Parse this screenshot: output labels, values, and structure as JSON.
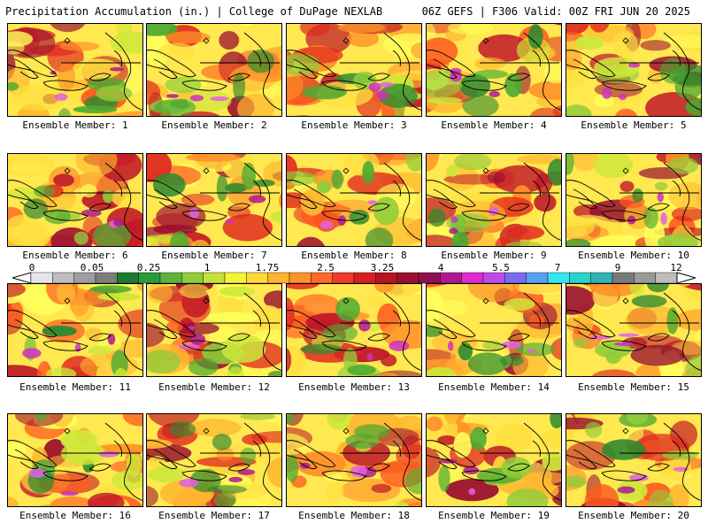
{
  "header": {
    "title_left": "Precipitation Accumulation (in.) | College of DuPage NEXLAB",
    "title_right": "06Z GEFS | F306 Valid: 00Z FRI JUN 20 2025"
  },
  "colorbar": {
    "labels": [
      "0",
      "0.05",
      "0.25",
      "1",
      "1.75",
      "2.5",
      "3.25",
      "4",
      "5.5",
      "7",
      "9",
      "12"
    ],
    "colors": [
      "#e6e6e6",
      "#bdbdbd",
      "#9e9e9e",
      "#7d7d7d",
      "#1e7a2e",
      "#2e9a3a",
      "#5cb53a",
      "#8fcc3a",
      "#c8e03a",
      "#f2f23a",
      "#ffd83a",
      "#ffb42e",
      "#ff922a",
      "#ff6a2a",
      "#f03a2a",
      "#d81e1e",
      "#b81420",
      "#9a1030",
      "#8a1050",
      "#b01890",
      "#e02ad0",
      "#c04ae8",
      "#7a6cf0",
      "#5aa0f0",
      "#32e6f0",
      "#2ad2c8",
      "#30b4b4",
      "#7a7a7a",
      "#9a9a9a",
      "#bcbcbc"
    ]
  },
  "members": [
    {
      "caption": "Ensemble Member: 1"
    },
    {
      "caption": "Ensemble Member: 2"
    },
    {
      "caption": "Ensemble Member: 3"
    },
    {
      "caption": "Ensemble Member: 4"
    },
    {
      "caption": "Ensemble Member: 5"
    },
    {
      "caption": "Ensemble Member: 6"
    },
    {
      "caption": "Ensemble Member: 7"
    },
    {
      "caption": "Ensemble Member: 8"
    },
    {
      "caption": "Ensemble Member: 9"
    },
    {
      "caption": "Ensemble Member: 10"
    },
    {
      "caption": "Ensemble Member: 11"
    },
    {
      "caption": "Ensemble Member: 12"
    },
    {
      "caption": "Ensemble Member: 13"
    },
    {
      "caption": "Ensemble Member: 14"
    },
    {
      "caption": "Ensemble Member: 15"
    },
    {
      "caption": "Ensemble Member: 16"
    },
    {
      "caption": "Ensemble Member: 17"
    },
    {
      "caption": "Ensemble Member: 18"
    },
    {
      "caption": "Ensemble Member: 19"
    },
    {
      "caption": "Ensemble Member: 20"
    }
  ]
}
